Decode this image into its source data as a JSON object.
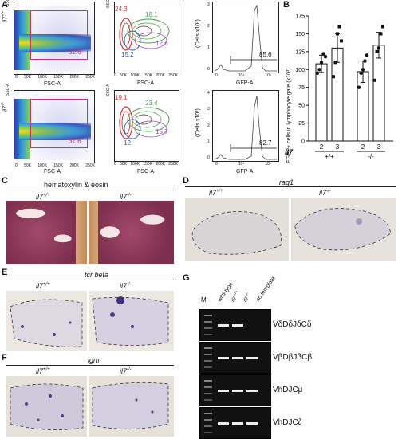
{
  "panels": {
    "A": "A",
    "B": "B",
    "C": "C",
    "D": "D",
    "E": "E",
    "F": "F",
    "G": "G"
  },
  "facs": {
    "row1": {
      "genotype": "il7",
      "sup": "+/+",
      "gate_pct": "31.6",
      "g_red": "24.3",
      "g_green": "18.1",
      "g_blue": "15.2",
      "g_purple": "12.6",
      "gfp_pct": "85.6"
    },
    "row2": {
      "genotype": "il7",
      "sup": "-/-",
      "gate_pct": "31.6",
      "g_red": "19.1",
      "g_green": "23.4",
      "g_blue": "12",
      "g_purple": "15.7",
      "gfp_pct": "82.7"
    },
    "ssc": "SSC-A",
    "fsc": "FSC-A",
    "gfp": "GFP-A",
    "cells": "(Cells x10³)",
    "xticks_fsc": [
      "0",
      "50K",
      "100K",
      "150K",
      "200K",
      "250K"
    ],
    "hist_yticks1": [
      "0",
      "1",
      "2",
      "3"
    ],
    "hist_yticks2": [
      "0",
      "1",
      "2",
      "3",
      "4"
    ],
    "hist_xticks": [
      "0",
      "10⁴",
      "10⁵"
    ]
  },
  "chart_data": {
    "type": "bar",
    "ylabel": "EGFP+ cells in lymphocyte gate (x10³)",
    "ylim": [
      0,
      175
    ],
    "yticks": [
      "0",
      "25",
      "50",
      "75",
      "100",
      "125",
      "150",
      "175"
    ],
    "categories": [
      "2",
      "3",
      "2",
      "3"
    ],
    "groups": [
      "+/+",
      "-/-"
    ],
    "group_prefix": "il7",
    "values": [
      108,
      130,
      97,
      134
    ],
    "errors": [
      12,
      20,
      15,
      18
    ],
    "points": [
      [
        95,
        100,
        110,
        122,
        118
      ],
      [
        90,
        110,
        150,
        160,
        140
      ],
      [
        75,
        95,
        100,
        112,
        120
      ],
      [
        85,
        125,
        130,
        150,
        160
      ]
    ]
  },
  "C": {
    "title": "hematoxylin & eosin",
    "wt": "il7",
    "wt_sup": "+/+",
    "ko": "il7",
    "ko_sup": "-/-"
  },
  "D": {
    "title": "rag1",
    "wt": "il7",
    "wt_sup": "+/+",
    "ko": "il7",
    "ko_sup": "-/-"
  },
  "E": {
    "title": "tcr beta",
    "wt": "il7",
    "wt_sup": "+/+",
    "ko": "il7",
    "ko_sup": "-/-"
  },
  "F": {
    "title": "igm",
    "wt": "il7",
    "wt_sup": "+/+",
    "ko": "il7",
    "ko_sup": "-/-"
  },
  "G": {
    "lanes": [
      "M",
      "wild-type",
      "il7",
      "il7",
      "no template"
    ],
    "lane_sups": [
      "",
      "",
      "+/+",
      "-/-",
      ""
    ],
    "rows": [
      "VδDδJδCδ",
      "VβDβJβCβ",
      "VhDJCμ",
      "VhDJCζ"
    ]
  }
}
